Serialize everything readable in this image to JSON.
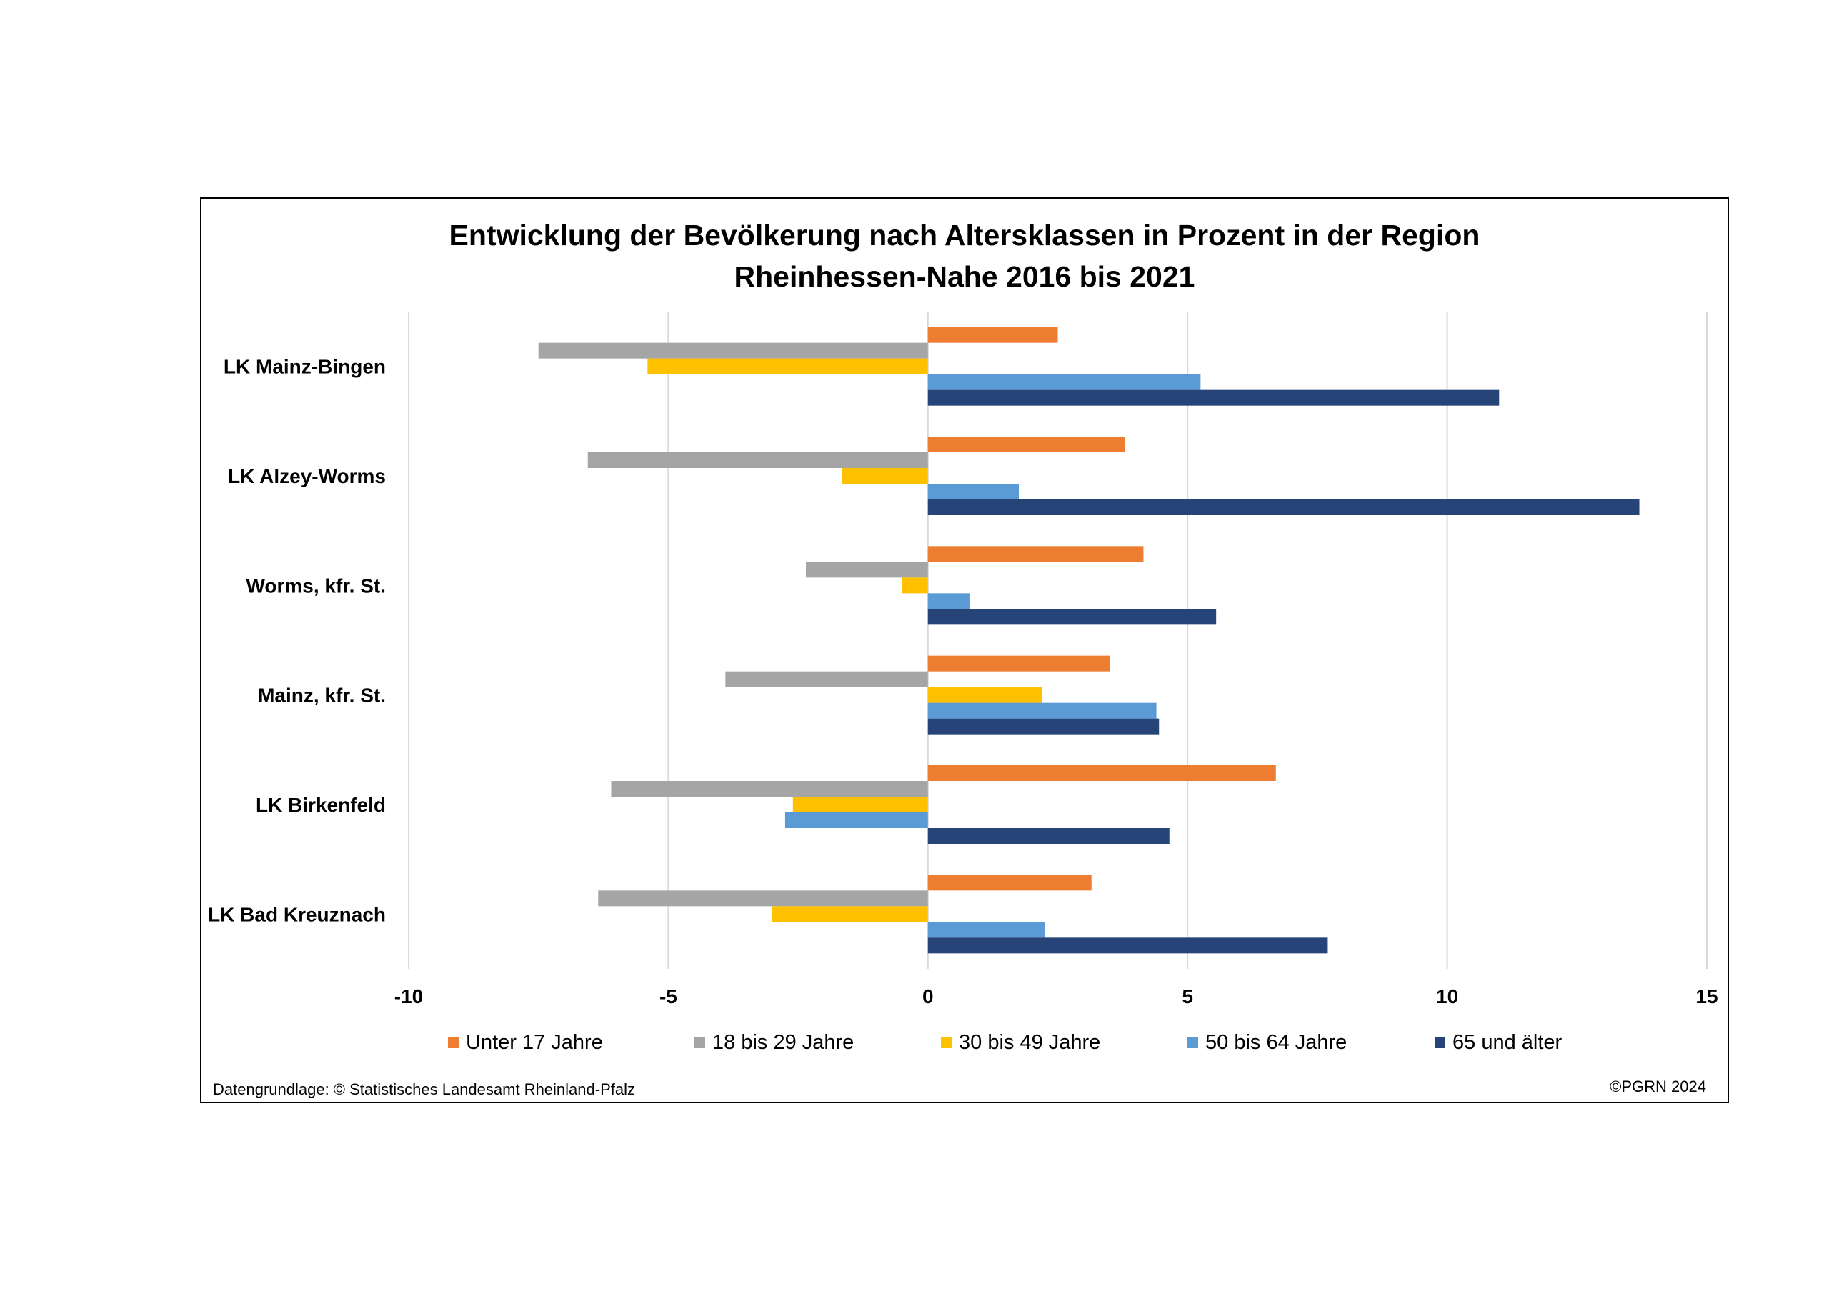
{
  "chart_data": {
    "type": "bar",
    "orientation": "horizontal",
    "title": "Entwicklung der Bevölkerung nach Altersklassen in Prozent in der Region\nRheinhessen-Nahe 2016 bis 2021",
    "categories": [
      "LK Mainz-Bingen",
      "LK Alzey-Worms",
      "Worms, kfr. St.",
      "Mainz, kfr. St.",
      "LK Birkenfeld",
      "LK Bad Kreuznach"
    ],
    "series": [
      {
        "name": "Unter 17 Jahre",
        "color": "#ED7D31",
        "values": [
          2.5,
          3.8,
          4.15,
          3.5,
          6.7,
          3.15
        ]
      },
      {
        "name": "18 bis 29 Jahre",
        "color": "#A5A5A5",
        "values": [
          -7.5,
          -6.55,
          -2.35,
          -3.9,
          -6.1,
          -6.35
        ]
      },
      {
        "name": "30 bis 49 Jahre",
        "color": "#FFC000",
        "values": [
          -5.4,
          -1.65,
          -0.5,
          2.2,
          -2.6,
          -3.0
        ]
      },
      {
        "name": "50 bis 64 Jahre",
        "color": "#5B9BD5",
        "values": [
          5.25,
          1.75,
          0.8,
          4.4,
          -2.75,
          2.25
        ]
      },
      {
        "name": "65 und älter",
        "color": "#264478",
        "values": [
          11.0,
          13.7,
          5.55,
          4.45,
          4.65,
          7.7
        ]
      }
    ],
    "xlim": [
      -10,
      15
    ],
    "xticks": [
      -10,
      -5,
      0,
      5,
      10,
      15
    ],
    "grid": true,
    "legend_position": "bottom"
  },
  "footer": {
    "source": "Datengrundlage: © Statistisches Landesamt Rheinland-Pfalz",
    "copyright": "©PGRN 2024"
  }
}
